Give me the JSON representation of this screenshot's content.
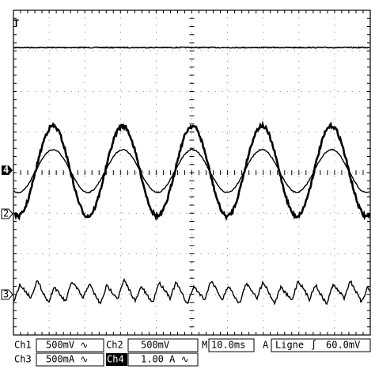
{
  "screen": {
    "markers": {
      "trigger": "T",
      "ch4": "4",
      "ch2": "2",
      "ch3": "3"
    },
    "status": {
      "ch1_label": "Ch1",
      "ch1_scale": "500mV ∿",
      "ch2_label": "Ch2",
      "ch2_scale": "500mV",
      "time_label": "M",
      "time_scale": "10.0ms",
      "trigger_label": "A",
      "trigger_source": "Ligne",
      "trigger_slope": "∫",
      "trigger_level": "60.0mV",
      "ch3_label": "Ch3",
      "ch3_scale": "500mA ∿",
      "ch4_label": "Ch4",
      "ch4_scale": "1.00 A ∿"
    }
  }
}
